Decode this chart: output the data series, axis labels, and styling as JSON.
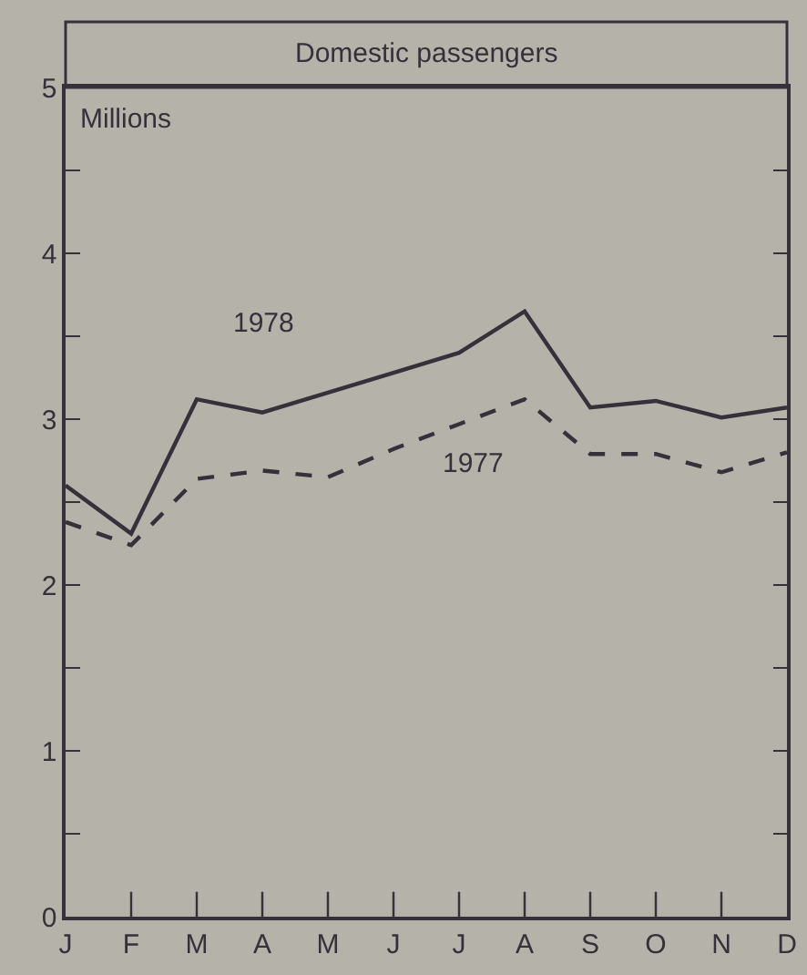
{
  "chart_data": {
    "type": "line",
    "title": "Domestic passengers",
    "ylabel": "Millions",
    "categories": [
      "J",
      "F",
      "M",
      "A",
      "M",
      "J",
      "J",
      "A",
      "S",
      "O",
      "N",
      "D"
    ],
    "series": [
      {
        "name": "1978",
        "color": "#36303a",
        "line_style": "solid",
        "values": [
          2.6,
          2.31,
          3.12,
          3.04,
          3.16,
          3.28,
          3.4,
          3.65,
          3.07,
          3.11,
          3.01,
          3.07
        ]
      },
      {
        "name": "1977",
        "color": "#36303a",
        "line_style": "dashed",
        "values": [
          2.38,
          2.24,
          2.64,
          2.69,
          2.65,
          2.82,
          2.97,
          3.12,
          2.79,
          2.79,
          2.68,
          2.8
        ]
      }
    ],
    "ylim": [
      0,
      5
    ],
    "yticks": [
      0,
      {
        "value": 0.5,
        "label": null
      },
      1,
      {
        "value": 1.5,
        "label": null
      },
      2,
      {
        "value": 2.5,
        "label": null
      },
      3,
      {
        "value": 3.5,
        "label": null
      },
      4,
      {
        "value": 4.5,
        "label": null
      },
      5
    ],
    "grid": false,
    "legend": false,
    "marker": "none"
  }
}
